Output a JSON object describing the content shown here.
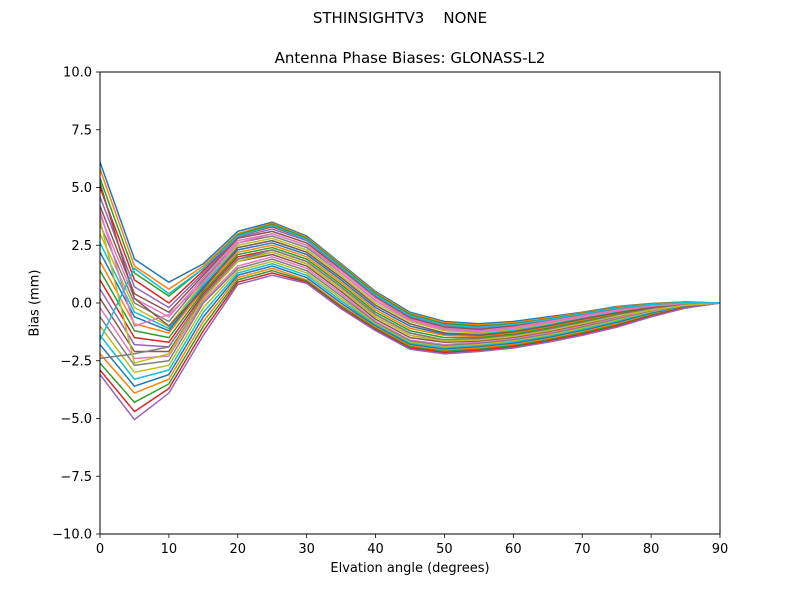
{
  "figure": {
    "suptitle": "STHINSIGHTV3    NONE"
  },
  "chart_data": {
    "type": "line",
    "title": "Antenna Phase Biases: GLONASS-L2",
    "xlabel": "Elvation angle (degrees)",
    "ylabel": "Bias (mm)",
    "xlim": [
      0,
      90
    ],
    "ylim": [
      -10,
      10
    ],
    "xticks": [
      "0",
      "10",
      "20",
      "30",
      "40",
      "50",
      "60",
      "70",
      "80",
      "90"
    ],
    "yticks": [
      "10.0",
      "7.5",
      "5.0",
      "2.5",
      "0.0",
      "−2.5",
      "−5.0",
      "−7.5",
      "−10.0"
    ],
    "x": [
      0,
      5,
      10,
      15,
      20,
      25,
      30,
      35,
      40,
      45,
      50,
      55,
      60,
      65,
      70,
      75,
      80,
      85,
      90
    ],
    "legend": "none",
    "grid": false,
    "colors": [
      "#1f77b4",
      "#ff7f0e",
      "#2ca02c",
      "#d62728",
      "#9467bd",
      "#8c564b",
      "#e377c2",
      "#7f7f7f",
      "#bcbd22",
      "#17becf"
    ],
    "series": [
      {
        "values": [
          6.1,
          1.9,
          0.9,
          1.7,
          3.1,
          3.5,
          2.9,
          1.7,
          0.5,
          -0.4,
          -0.8,
          -0.9,
          -0.8,
          -0.6,
          -0.4,
          -0.15,
          -0.02,
          0.05,
          0.0
        ]
      },
      {
        "values": [
          5.8,
          1.6,
          0.6,
          1.6,
          3.0,
          3.45,
          2.85,
          1.65,
          0.45,
          -0.45,
          -0.85,
          -0.95,
          -0.85,
          -0.65,
          -0.42,
          -0.17,
          -0.03,
          0.04,
          0.0
        ]
      },
      {
        "values": [
          5.4,
          1.3,
          0.3,
          1.5,
          2.95,
          3.4,
          2.8,
          1.6,
          0.4,
          -0.5,
          -0.9,
          -1.0,
          -0.9,
          -0.7,
          -0.45,
          -0.2,
          -0.05,
          0.03,
          0.0
        ]
      },
      {
        "values": [
          5.0,
          1.0,
          0.0,
          1.4,
          2.9,
          3.3,
          2.75,
          1.55,
          0.35,
          -0.55,
          -0.95,
          -1.05,
          -0.93,
          -0.72,
          -0.47,
          -0.22,
          -0.06,
          0.02,
          0.0
        ]
      },
      {
        "values": [
          4.6,
          0.7,
          -0.2,
          1.3,
          2.85,
          3.2,
          2.7,
          1.5,
          0.3,
          -0.6,
          -1.0,
          -1.1,
          -0.97,
          -0.75,
          -0.5,
          -0.25,
          -0.08,
          0.01,
          0.0
        ]
      },
      {
        "values": [
          4.2,
          0.4,
          -0.4,
          1.2,
          2.8,
          3.1,
          2.6,
          1.45,
          0.25,
          -0.65,
          -1.05,
          -1.15,
          -1.0,
          -0.78,
          -0.53,
          -0.27,
          -0.1,
          0.0,
          0.0
        ]
      },
      {
        "values": [
          3.8,
          0.2,
          -0.6,
          1.1,
          2.7,
          3.0,
          2.5,
          1.4,
          0.2,
          -0.7,
          -1.1,
          -1.2,
          -1.05,
          -0.8,
          -0.55,
          -0.3,
          -0.12,
          -0.01,
          0.0
        ]
      },
      {
        "values": [
          3.4,
          0.0,
          -0.8,
          1.0,
          2.6,
          2.9,
          2.4,
          1.3,
          0.1,
          -0.75,
          -1.15,
          -1.25,
          -1.1,
          -0.85,
          -0.6,
          -0.33,
          -0.14,
          -0.02,
          0.0
        ]
      },
      {
        "values": [
          3.0,
          -0.2,
          -1.0,
          0.9,
          2.5,
          2.8,
          2.3,
          1.2,
          0.0,
          -0.8,
          -1.2,
          -1.3,
          -1.15,
          -0.9,
          -0.63,
          -0.36,
          -0.16,
          -0.03,
          0.0
        ]
      },
      {
        "values": [
          2.6,
          -0.4,
          -1.1,
          0.8,
          2.4,
          2.7,
          2.2,
          1.1,
          -0.1,
          -0.9,
          -1.3,
          -1.35,
          -1.2,
          -0.95,
          -0.67,
          -0.4,
          -0.18,
          -0.04,
          0.0
        ]
      },
      {
        "values": [
          2.2,
          -0.6,
          -1.2,
          0.7,
          2.3,
          2.6,
          2.1,
          1.0,
          -0.2,
          -1.0,
          -1.35,
          -1.4,
          -1.25,
          -1.0,
          -0.7,
          -0.43,
          -0.2,
          -0.05,
          0.0
        ]
      },
      {
        "values": [
          1.8,
          -0.9,
          -1.3,
          0.6,
          2.2,
          2.5,
          2.0,
          0.9,
          -0.3,
          -1.1,
          -1.4,
          -1.45,
          -1.3,
          -1.05,
          -0.75,
          -0.46,
          -0.22,
          -0.06,
          0.0
        ]
      },
      {
        "values": [
          1.4,
          -1.2,
          -1.5,
          0.5,
          2.1,
          2.4,
          1.9,
          0.8,
          -0.4,
          -1.2,
          -1.5,
          -1.5,
          -1.35,
          -1.1,
          -0.8,
          -0.5,
          -0.25,
          -0.07,
          0.0
        ]
      },
      {
        "values": [
          1.0,
          -1.5,
          -1.7,
          0.4,
          2.0,
          2.3,
          1.8,
          0.7,
          -0.5,
          -1.3,
          -1.6,
          -1.55,
          -1.4,
          -1.15,
          -0.85,
          -0.53,
          -0.27,
          -0.08,
          0.0
        ]
      },
      {
        "values": [
          0.6,
          -1.8,
          -1.9,
          0.3,
          1.9,
          2.2,
          1.7,
          0.6,
          -0.6,
          -1.4,
          -1.65,
          -1.6,
          -1.45,
          -1.2,
          -0.9,
          -0.57,
          -0.3,
          -0.1,
          0.0
        ]
      },
      {
        "values": [
          0.2,
          -2.1,
          -2.1,
          0.2,
          1.8,
          2.1,
          1.6,
          0.5,
          -0.7,
          -1.5,
          -1.7,
          -1.65,
          -1.5,
          -1.25,
          -0.95,
          -0.6,
          -0.32,
          -0.11,
          0.0
        ]
      },
      {
        "values": [
          -0.2,
          -2.4,
          -2.3,
          0.1,
          1.6,
          2.0,
          1.5,
          0.4,
          -0.8,
          -1.6,
          -1.8,
          -1.7,
          -1.55,
          -1.3,
          -1.0,
          -0.65,
          -0.35,
          -0.12,
          0.0
        ]
      },
      {
        "values": [
          -0.6,
          -2.7,
          -2.5,
          0.0,
          1.5,
          1.9,
          1.4,
          0.3,
          -0.85,
          -1.65,
          -1.85,
          -1.75,
          -1.6,
          -1.35,
          -1.05,
          -0.7,
          -0.38,
          -0.13,
          0.0
        ]
      },
      {
        "values": [
          -1.0,
          -3.0,
          -2.7,
          -0.2,
          1.4,
          1.8,
          1.3,
          0.2,
          -0.9,
          -1.7,
          -1.9,
          -1.8,
          -1.65,
          -1.4,
          -1.1,
          -0.75,
          -0.4,
          -0.14,
          0.0
        ]
      },
      {
        "values": [
          -1.4,
          -3.3,
          -2.9,
          -0.4,
          1.3,
          1.7,
          1.2,
          0.1,
          -0.95,
          -1.75,
          -1.95,
          -1.85,
          -1.7,
          -1.45,
          -1.15,
          -0.8,
          -0.43,
          -0.15,
          0.0
        ]
      },
      {
        "values": [
          -1.8,
          -3.6,
          -3.1,
          -0.6,
          1.2,
          1.6,
          1.1,
          0.0,
          -1.0,
          -1.8,
          -2.0,
          -1.9,
          -1.75,
          -1.5,
          -1.2,
          -0.85,
          -0.46,
          -0.16,
          0.0
        ]
      },
      {
        "values": [
          -2.2,
          -3.9,
          -3.3,
          -0.8,
          1.1,
          1.5,
          1.0,
          -0.1,
          -1.05,
          -1.85,
          -2.05,
          -1.95,
          -1.8,
          -1.55,
          -1.25,
          -0.9,
          -0.5,
          -0.18,
          0.0
        ]
      },
      {
        "values": [
          -2.6,
          -4.3,
          -3.5,
          -1.0,
          1.0,
          1.4,
          0.95,
          -0.15,
          -1.1,
          -1.9,
          -2.1,
          -2.0,
          -1.85,
          -1.6,
          -1.3,
          -0.95,
          -0.53,
          -0.19,
          0.0
        ]
      },
      {
        "values": [
          -2.9,
          -4.7,
          -3.7,
          -1.2,
          0.9,
          1.3,
          0.9,
          -0.2,
          -1.15,
          -1.95,
          -2.15,
          -2.05,
          -1.9,
          -1.65,
          -1.35,
          -1.0,
          -0.56,
          -0.2,
          0.0
        ]
      },
      {
        "values": [
          -3.1,
          -5.05,
          -3.9,
          -1.4,
          0.8,
          1.2,
          0.85,
          -0.25,
          -1.2,
          -2.0,
          -2.2,
          -2.1,
          -1.95,
          -1.7,
          -1.4,
          -1.05,
          -0.6,
          -0.22,
          0.0
        ]
      },
      {
        "values": [
          5.2,
          0.2,
          -1.0,
          0.6,
          2.4,
          2.7,
          2.2,
          1.1,
          -0.1,
          -0.9,
          -1.3,
          -1.4,
          -1.25,
          -1.0,
          -0.7,
          -0.43,
          -0.2,
          -0.05,
          0.0
        ]
      },
      {
        "values": [
          4.0,
          -1.0,
          -0.5,
          0.9,
          2.6,
          3.0,
          2.5,
          1.3,
          0.1,
          -0.75,
          -1.15,
          -1.25,
          -1.1,
          -0.85,
          -0.6,
          -0.33,
          -0.14,
          -0.02,
          0.0
        ]
      },
      {
        "values": [
          -2.4,
          -2.2,
          -1.9,
          0.3,
          1.9,
          2.3,
          1.8,
          0.7,
          -0.5,
          -1.3,
          -1.6,
          -1.55,
          -1.4,
          -1.15,
          -0.85,
          -0.53,
          -0.27,
          -0.08,
          0.0
        ]
      },
      {
        "values": [
          3.6,
          -2.6,
          -2.2,
          0.2,
          1.8,
          2.2,
          1.7,
          0.6,
          -0.6,
          -1.4,
          -1.65,
          -1.6,
          -1.45,
          -1.2,
          -0.9,
          -0.57,
          -0.3,
          -0.1,
          0.0
        ]
      },
      {
        "values": [
          -1.6,
          1.5,
          0.4,
          1.5,
          2.9,
          3.35,
          2.75,
          1.55,
          0.35,
          -0.55,
          -0.95,
          -1.05,
          -0.93,
          -0.72,
          -0.47,
          -0.22,
          -0.06,
          0.02,
          0.0
        ]
      }
    ]
  }
}
